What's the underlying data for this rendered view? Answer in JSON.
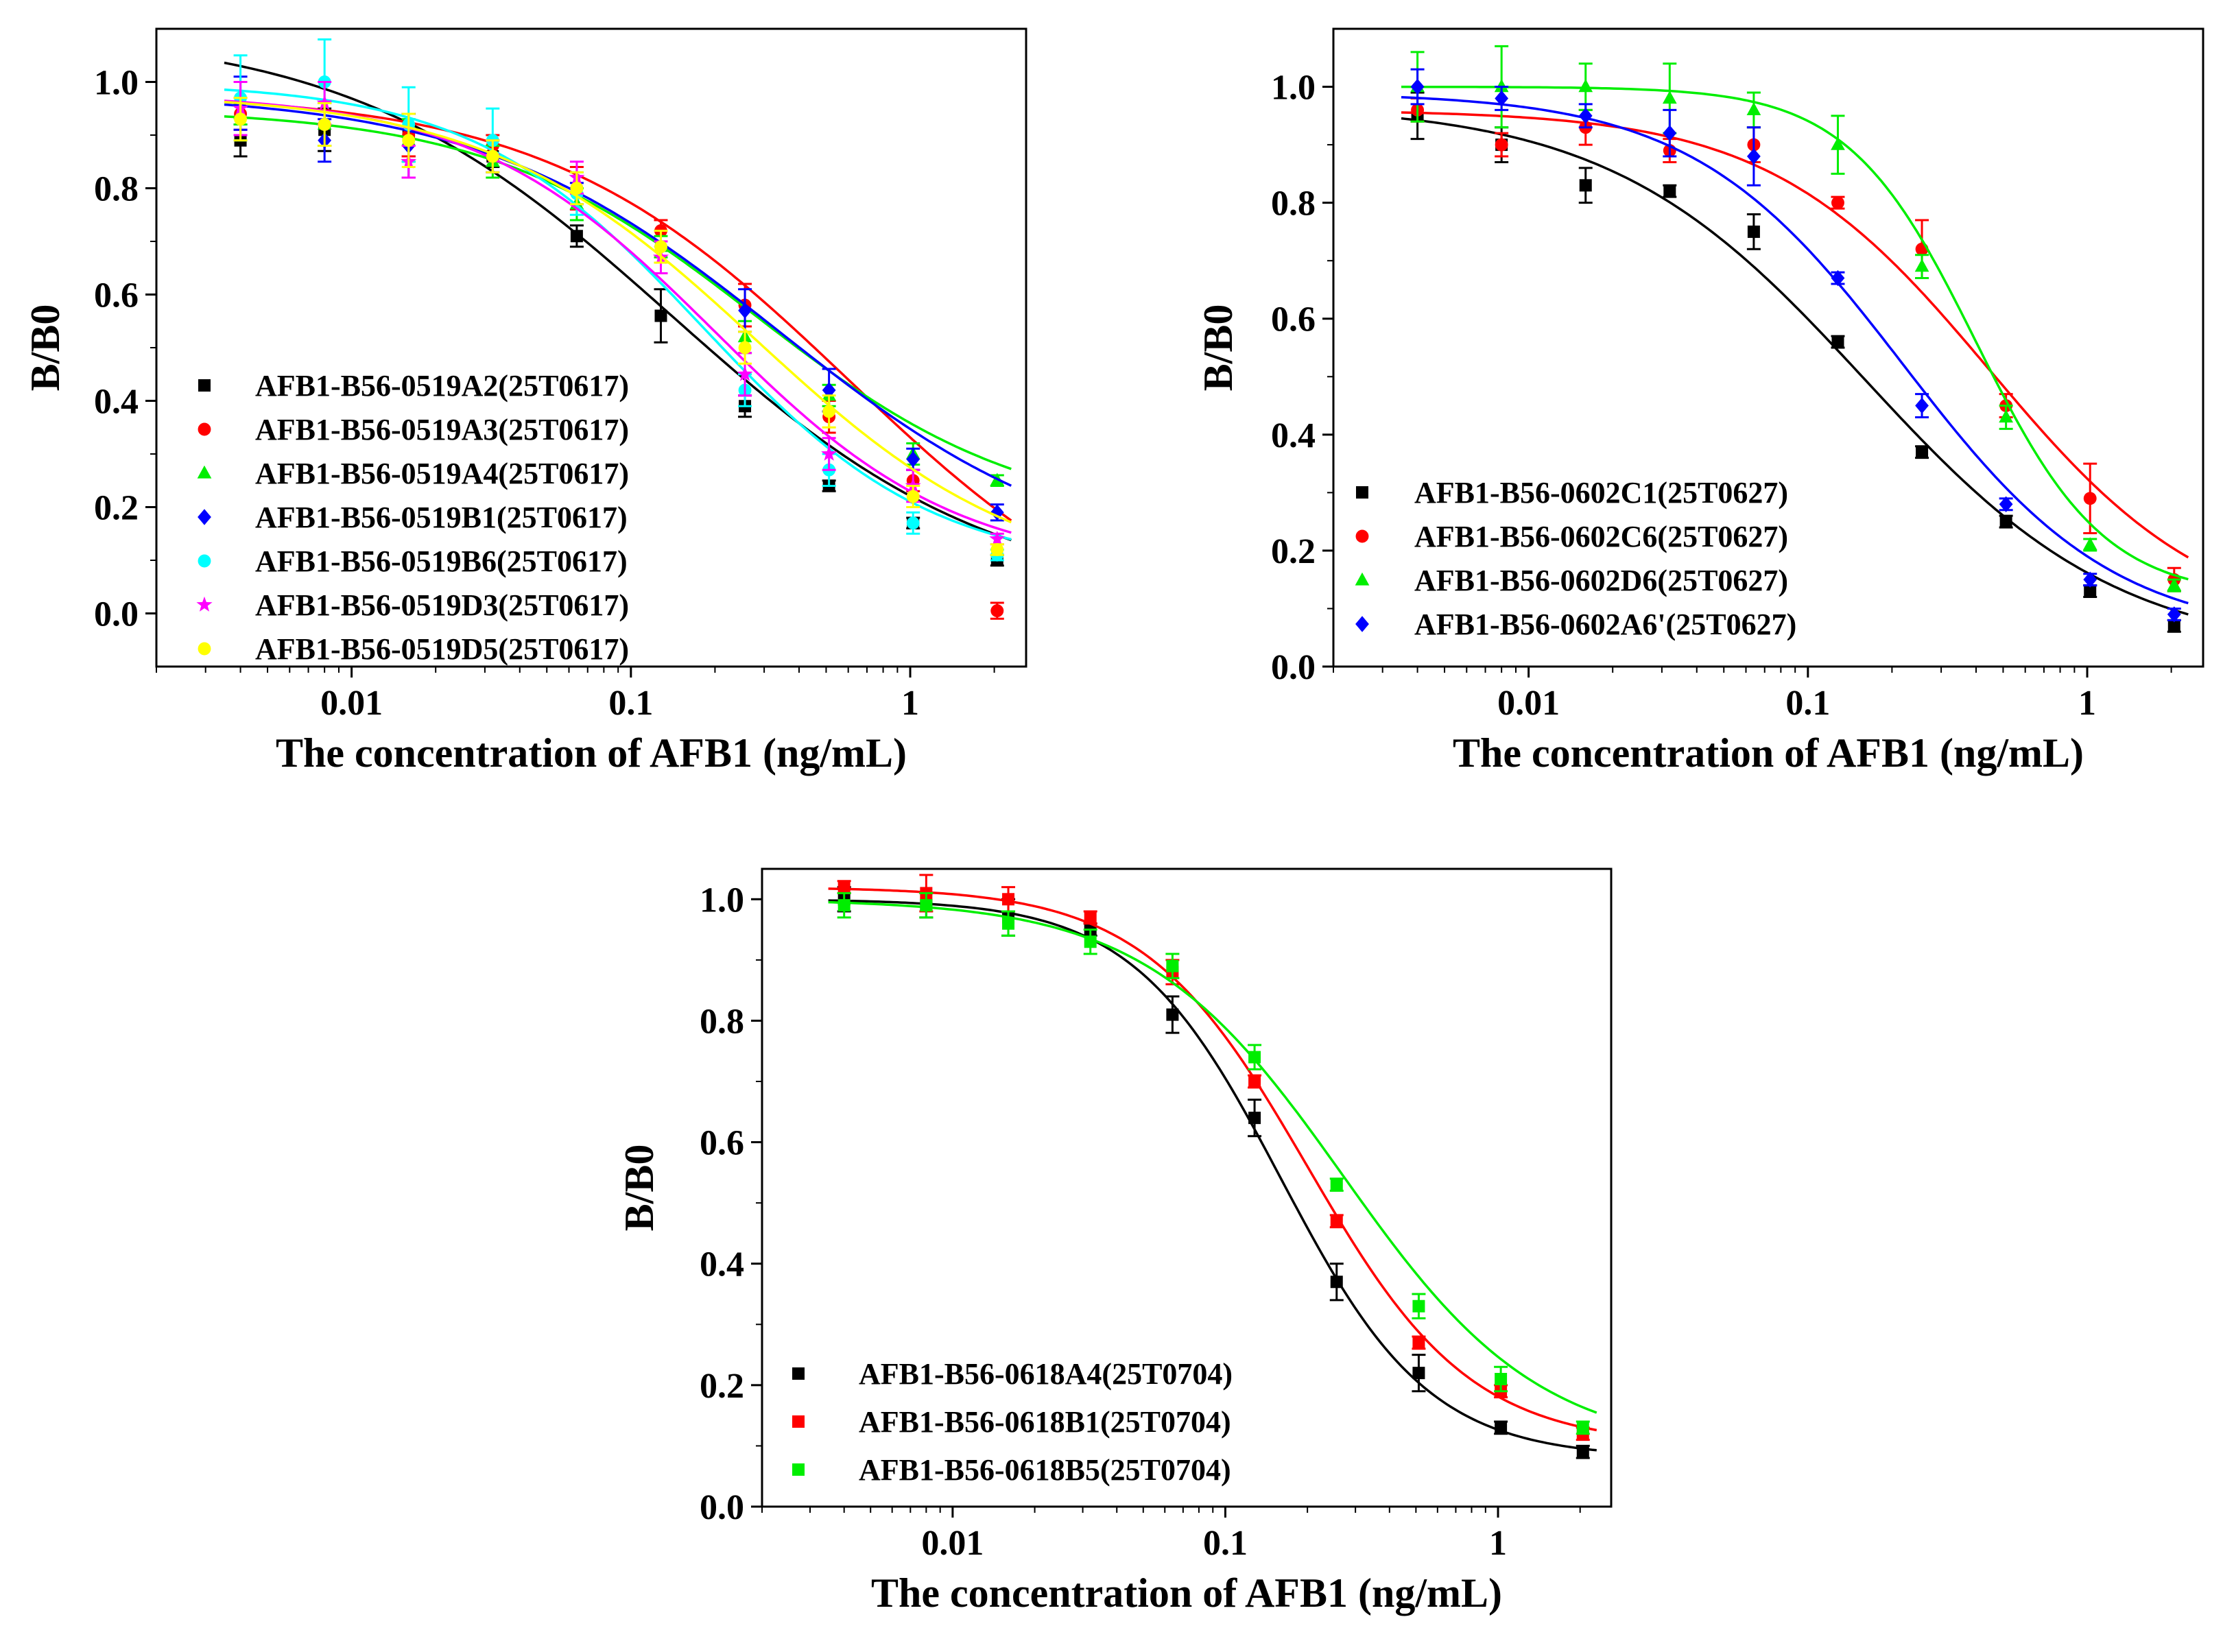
{
  "chart_data": [
    {
      "type": "scatter",
      "title": "",
      "xlabel": "The concentration of AFB1 (ng/mL)",
      "ylabel": "B/B0",
      "xscale": "log",
      "xlim": [
        0.002,
        2.6
      ],
      "ylim": [
        -0.1,
        1.1
      ],
      "xticks": [
        0.01,
        0.1,
        1
      ],
      "xtick_labels": [
        "0.01",
        "0.1",
        "1"
      ],
      "yticks": [
        0.0,
        0.2,
        0.4,
        0.6,
        0.8,
        1.0
      ],
      "ytick_labels": [
        "0.0",
        "0.2",
        "0.4",
        "0.6",
        "0.8",
        "1.0"
      ],
      "legend_position": "lower-left",
      "x": [
        0.004,
        0.008,
        0.016,
        0.032,
        0.064,
        0.128,
        0.256,
        0.512,
        1.024,
        2.048
      ],
      "series": [
        {
          "name": "AFB1-B56-0519A2(25T0617)",
          "color": "#000000",
          "marker": "square",
          "values": [
            0.89,
            0.91,
            0.9,
            0.86,
            0.71,
            0.56,
            0.39,
            0.24,
            0.17,
            0.1
          ],
          "errors": [
            0.03,
            0.04,
            0.04,
            0.02,
            0.02,
            0.05,
            0.02,
            0.01,
            0.01,
            0.01
          ],
          "fit": {
            "top": 1.1,
            "bottom": 0.02,
            "ic50": 0.14,
            "hill": 0.75
          }
        },
        {
          "name": "AFB1-B56-0519A3(25T0617)",
          "color": "#ff0000",
          "marker": "circle",
          "values": [
            0.94,
            0.92,
            0.9,
            0.88,
            0.8,
            0.72,
            0.58,
            0.37,
            0.25,
            0.005
          ],
          "errors": [
            0.03,
            0.04,
            0.04,
            0.02,
            0.04,
            0.02,
            0.04,
            0.03,
            0.02,
            0.015
          ],
          "fit": {
            "top": 0.98,
            "bottom": -0.1,
            "ic50": 0.6,
            "hill": 0.8
          }
        },
        {
          "name": "AFB1-B56-0519A4(25T0617)",
          "color": "#00ee00",
          "marker": "triangle",
          "values": [
            0.94,
            0.92,
            0.89,
            0.85,
            0.77,
            0.69,
            0.52,
            0.41,
            0.3,
            0.25
          ],
          "errors": [
            0.02,
            0.04,
            0.04,
            0.03,
            0.03,
            0.02,
            0.03,
            0.02,
            0.02,
            0.01
          ],
          "fit": {
            "top": 0.95,
            "bottom": 0.17,
            "ic50": 0.28,
            "hill": 0.9
          }
        },
        {
          "name": "AFB1-B56-0519B1(25T0617)",
          "color": "#0000ff",
          "marker": "diamond",
          "values": [
            0.96,
            0.89,
            0.88,
            0.86,
            0.79,
            0.69,
            0.57,
            0.42,
            0.29,
            0.19
          ],
          "errors": [
            0.05,
            0.04,
            0.06,
            0.03,
            0.02,
            0.03,
            0.04,
            0.04,
            0.02,
            0.015
          ],
          "fit": {
            "top": 0.98,
            "bottom": 0.08,
            "ic50": 0.34,
            "hill": 0.8
          }
        },
        {
          "name": "AFB1-B56-0519B6(25T0617)",
          "color": "#00ffff",
          "marker": "circle",
          "values": [
            0.97,
            1.0,
            0.92,
            0.89,
            0.79,
            0.69,
            0.42,
            0.27,
            0.17,
            0.11
          ],
          "errors": [
            0.08,
            0.08,
            0.07,
            0.06,
            0.04,
            0.03,
            0.03,
            0.03,
            0.02,
            0.01
          ],
          "fit": {
            "top": 1.0,
            "bottom": 0.08,
            "ic50": 0.18,
            "hill": 1.05
          }
        },
        {
          "name": "AFB1-B56-0519D3(25T0617)",
          "color": "#ff00ff",
          "marker": "star",
          "values": [
            0.95,
            0.96,
            0.85,
            0.86,
            0.82,
            0.67,
            0.45,
            0.3,
            0.24,
            0.14
          ],
          "errors": [
            0.05,
            0.04,
            0.03,
            0.03,
            0.03,
            0.03,
            0.04,
            0.03,
            0.03,
            0.01
          ],
          "fit": {
            "top": 0.98,
            "bottom": 0.08,
            "ic50": 0.2,
            "hill": 1.0
          }
        },
        {
          "name": "AFB1-B56-0519D5(25T0617)",
          "color": "#ffff00",
          "marker": "circle",
          "values": [
            0.93,
            0.92,
            0.89,
            0.86,
            0.8,
            0.69,
            0.5,
            0.38,
            0.22,
            0.12
          ],
          "errors": [
            0.04,
            0.04,
            0.05,
            0.03,
            0.03,
            0.03,
            0.03,
            0.03,
            0.02,
            0.01
          ],
          "fit": {
            "top": 0.98,
            "bottom": 0.05,
            "ic50": 0.28,
            "hill": 0.9
          }
        }
      ]
    },
    {
      "type": "scatter",
      "title": "",
      "xlabel": "The concentration of AFB1 (ng/mL)",
      "ylabel": "B/B0",
      "xscale": "log",
      "xlim": [
        0.002,
        2.6
      ],
      "ylim": [
        0.0,
        1.1
      ],
      "xticks": [
        0.01,
        0.1,
        1
      ],
      "xtick_labels": [
        "0.01",
        "0.1",
        "1"
      ],
      "yticks": [
        0.0,
        0.2,
        0.4,
        0.6,
        0.8,
        1.0
      ],
      "ytick_labels": [
        "0.0",
        "0.2",
        "0.4",
        "0.6",
        "0.8",
        "1.0"
      ],
      "legend_position": "lower-left",
      "x": [
        0.004,
        0.008,
        0.016,
        0.032,
        0.064,
        0.128,
        0.256,
        0.512,
        1.024,
        2.048
      ],
      "series": [
        {
          "name": "AFB1-B56-0602C1(25T0627)",
          "color": "#000000",
          "marker": "square",
          "values": [
            0.95,
            0.9,
            0.83,
            0.82,
            0.75,
            0.56,
            0.37,
            0.25,
            0.13,
            0.07
          ],
          "errors": [
            0.04,
            0.03,
            0.03,
            0.01,
            0.03,
            0.01,
            0.01,
            0.01,
            0.01,
            0.01
          ],
          "fit": {
            "top": 0.97,
            "bottom": 0.02,
            "ic50": 0.16,
            "hill": 0.95
          }
        },
        {
          "name": "AFB1-B56-0602C6(25T0627)",
          "color": "#ff0000",
          "marker": "circle",
          "values": [
            0.96,
            0.9,
            0.93,
            0.89,
            0.9,
            0.8,
            0.72,
            0.45,
            0.29,
            0.15
          ],
          "errors": [
            0.02,
            0.02,
            0.03,
            0.02,
            0.03,
            0.01,
            0.05,
            0.02,
            0.06,
            0.02
          ],
          "fit": {
            "top": 0.96,
            "bottom": 0.06,
            "ic50": 0.45,
            "hill": 1.1
          }
        },
        {
          "name": "AFB1-B56-0602D6(25T0627)",
          "color": "#00ee00",
          "marker": "triangle",
          "values": [
            1.0,
            1.0,
            1.0,
            0.98,
            0.96,
            0.9,
            0.69,
            0.43,
            0.21,
            0.14
          ],
          "errors": [
            0.06,
            0.07,
            0.04,
            0.06,
            0.03,
            0.05,
            0.02,
            0.02,
            0.01,
            0.01
          ],
          "fit": {
            "top": 1.0,
            "bottom": 0.12,
            "ic50": 0.4,
            "hill": 1.9
          }
        },
        {
          "name": "AFB1-B56-0602A6'(25T0627)",
          "color": "#0000ff",
          "marker": "diamond",
          "values": [
            1.0,
            0.98,
            0.95,
            0.92,
            0.88,
            0.67,
            0.45,
            0.28,
            0.15,
            0.09
          ],
          "errors": [
            0.03,
            0.02,
            0.02,
            0.04,
            0.05,
            0.01,
            0.02,
            0.01,
            0.01,
            0.01
          ],
          "fit": {
            "top": 0.99,
            "bottom": 0.05,
            "ic50": 0.22,
            "hill": 1.15
          }
        }
      ]
    },
    {
      "type": "scatter",
      "title": "",
      "xlabel": "The concentration of AFB1 (ng/mL)",
      "ylabel": "B/B0",
      "xscale": "log",
      "xlim": [
        0.002,
        2.6
      ],
      "ylim": [
        0.0,
        1.05
      ],
      "xticks": [
        0.01,
        0.1,
        1
      ],
      "xtick_labels": [
        "0.01",
        "0.1",
        "1"
      ],
      "yticks": [
        0.0,
        0.2,
        0.4,
        0.6,
        0.8,
        1.0
      ],
      "ytick_labels": [
        "0.0",
        "0.2",
        "0.4",
        "0.6",
        "0.8",
        "1.0"
      ],
      "legend_position": "lower-left",
      "x": [
        0.004,
        0.008,
        0.016,
        0.032,
        0.064,
        0.128,
        0.256,
        0.512,
        1.024,
        2.048
      ],
      "series": [
        {
          "name": "AFB1-B56-0618A4(25T0704)",
          "color": "#000000",
          "marker": "square",
          "values": [
            1.0,
            0.99,
            0.97,
            0.95,
            0.81,
            0.64,
            0.37,
            0.22,
            0.13,
            0.09
          ],
          "errors": [
            0.02,
            0.02,
            0.03,
            0.01,
            0.03,
            0.03,
            0.03,
            0.03,
            0.01,
            0.01
          ],
          "fit": {
            "top": 1.0,
            "bottom": 0.08,
            "ic50": 0.16,
            "hill": 1.6
          }
        },
        {
          "name": "AFB1-B56-0618B1(25T0704)",
          "color": "#ff0000",
          "marker": "square",
          "values": [
            1.02,
            1.01,
            1.0,
            0.97,
            0.88,
            0.7,
            0.47,
            0.27,
            0.19,
            0.12
          ],
          "errors": [
            0.01,
            0.03,
            0.02,
            0.01,
            0.02,
            0.01,
            0.01,
            0.01,
            0.01,
            0.01
          ],
          "fit": {
            "top": 1.02,
            "bottom": 0.1,
            "ic50": 0.2,
            "hill": 1.45
          }
        },
        {
          "name": "AFB1-B56-0618B5(25T0704)",
          "color": "#00ee00",
          "marker": "square",
          "values": [
            0.99,
            0.99,
            0.96,
            0.93,
            0.89,
            0.74,
            0.53,
            0.33,
            0.21,
            0.13
          ],
          "errors": [
            0.02,
            0.02,
            0.02,
            0.02,
            0.02,
            0.02,
            0.01,
            0.02,
            0.02,
            0.01
          ],
          "fit": {
            "top": 1.0,
            "bottom": 0.09,
            "ic50": 0.27,
            "hill": 1.2
          }
        }
      ]
    }
  ]
}
